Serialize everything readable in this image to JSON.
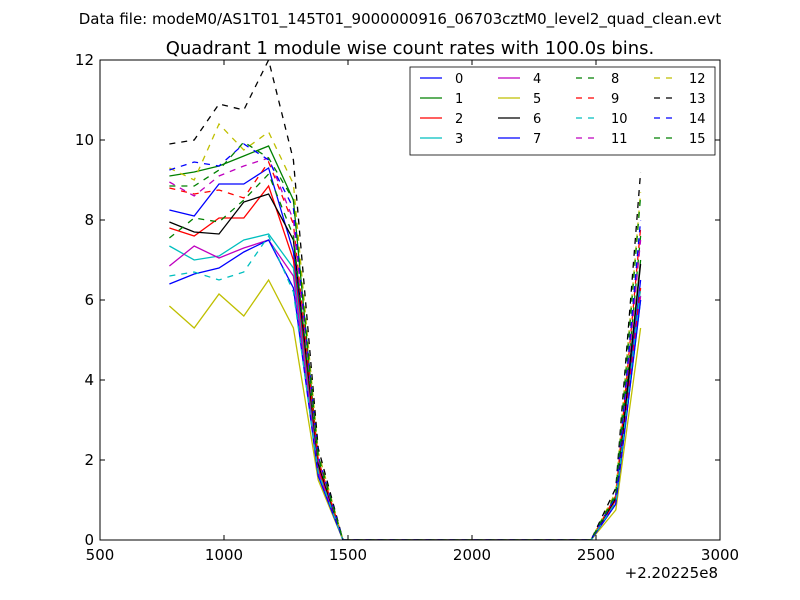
{
  "figure": {
    "suptitle": "Data file: modeM0/AS1T01_145T01_9000000916_06703cztM0_level2_quad_clean.evt"
  },
  "chart_data": {
    "type": "line",
    "title": "Quadrant 1 module wise count rates with 100.0s bins.",
    "xlabel": "",
    "ylabel": "",
    "offset_label": "+2.20225e8",
    "xlim": [
      500,
      3000
    ],
    "ylim": [
      0,
      12
    ],
    "xticks": [
      "500",
      "1000",
      "1500",
      "2000",
      "2500",
      "3000"
    ],
    "yticks": [
      "0",
      "2",
      "4",
      "6",
      "8",
      "10",
      "12"
    ],
    "grid": false,
    "legend_position": "top-right",
    "legend_columns": 4,
    "x": [
      780,
      880,
      980,
      1080,
      1180,
      1280,
      1380,
      1480,
      1580,
      1680,
      1780,
      1880,
      1980,
      2080,
      2180,
      2280,
      2380,
      2480,
      2580,
      2680
    ],
    "series": [
      {
        "name": "0",
        "color": "#0000ff",
        "dash": "solid",
        "values": [
          8.25,
          8.1,
          8.9,
          8.9,
          9.3,
          7.2,
          1.8,
          0,
          0,
          0,
          0,
          0,
          0,
          0,
          0,
          0,
          0,
          0,
          1.0,
          6.5
        ]
      },
      {
        "name": "1",
        "color": "#008000",
        "dash": "solid",
        "values": [
          9.1,
          9.2,
          9.35,
          9.6,
          9.85,
          8.5,
          2.0,
          0,
          0,
          0,
          0,
          0,
          0,
          0,
          0,
          0,
          0,
          0,
          1.1,
          7.0
        ]
      },
      {
        "name": "2",
        "color": "#ff0000",
        "dash": "solid",
        "values": [
          7.8,
          7.6,
          8.05,
          8.05,
          8.85,
          7.0,
          1.8,
          0,
          0,
          0,
          0,
          0,
          0,
          0,
          0,
          0,
          0,
          0,
          1.0,
          6.3
        ]
      },
      {
        "name": "3",
        "color": "#00bfbf",
        "dash": "solid",
        "values": [
          7.35,
          7.0,
          7.1,
          7.5,
          7.65,
          6.8,
          1.7,
          0,
          0,
          0,
          0,
          0,
          0,
          0,
          0,
          0,
          0,
          0,
          0.9,
          6.0
        ]
      },
      {
        "name": "4",
        "color": "#bf00bf",
        "dash": "solid",
        "values": [
          6.85,
          7.35,
          7.05,
          7.3,
          7.5,
          6.6,
          1.7,
          0,
          0,
          0,
          0,
          0,
          0,
          0,
          0,
          0,
          0,
          0,
          0.9,
          6.1
        ]
      },
      {
        "name": "5",
        "color": "#bfbf00",
        "dash": "solid",
        "values": [
          5.85,
          5.3,
          6.15,
          5.6,
          6.5,
          5.3,
          1.5,
          0,
          0,
          0,
          0,
          0,
          0,
          0,
          0,
          0,
          0,
          0,
          0.75,
          5.3
        ]
      },
      {
        "name": "6",
        "color": "#000000",
        "dash": "solid",
        "values": [
          7.95,
          7.7,
          7.65,
          8.45,
          8.65,
          7.5,
          1.9,
          0,
          0,
          0,
          0,
          0,
          0,
          0,
          0,
          0,
          0,
          0,
          1.05,
          6.9
        ]
      },
      {
        "name": "7",
        "color": "#0000ff",
        "dash": "solid",
        "values": [
          6.4,
          6.65,
          6.8,
          7.2,
          7.5,
          6.3,
          1.6,
          0,
          0,
          0,
          0,
          0,
          0,
          0,
          0,
          0,
          0,
          0,
          0.9,
          6.0
        ]
      },
      {
        "name": "8",
        "color": "#008000",
        "dash": "dashed",
        "values": [
          7.55,
          8.05,
          7.95,
          8.5,
          9.15,
          7.6,
          2.0,
          0,
          0,
          0,
          0,
          0,
          0,
          0,
          0,
          0,
          0,
          0,
          1.1,
          7.6
        ]
      },
      {
        "name": "9",
        "color": "#ff0000",
        "dash": "dashed",
        "values": [
          8.8,
          8.65,
          8.75,
          8.55,
          9.45,
          7.9,
          2.0,
          0,
          0,
          0,
          0,
          0,
          0,
          0,
          0,
          0,
          0,
          0,
          1.1,
          7.8
        ]
      },
      {
        "name": "10",
        "color": "#00bfbf",
        "dash": "dashed",
        "values": [
          6.6,
          6.7,
          6.5,
          6.7,
          7.6,
          6.2,
          1.7,
          0,
          0,
          0,
          0,
          0,
          0,
          0,
          0,
          0,
          0,
          0,
          0.95,
          6.3
        ]
      },
      {
        "name": "11",
        "color": "#bf00bf",
        "dash": "dashed",
        "values": [
          8.95,
          8.6,
          9.1,
          9.35,
          9.55,
          8.0,
          2.0,
          0,
          0,
          0,
          0,
          0,
          0,
          0,
          0,
          0,
          0,
          0,
          1.1,
          7.5
        ]
      },
      {
        "name": "12",
        "color": "#bfbf00",
        "dash": "dashed",
        "values": [
          9.3,
          9.0,
          10.4,
          9.75,
          10.2,
          8.9,
          2.2,
          0,
          0,
          0,
          0,
          0,
          0,
          0,
          0,
          0,
          0,
          0,
          1.2,
          8.7
        ]
      },
      {
        "name": "13",
        "color": "#000000",
        "dash": "dashed",
        "values": [
          9.9,
          10.0,
          10.9,
          10.75,
          12.0,
          9.5,
          2.3,
          0,
          0,
          0,
          0,
          0,
          0,
          0,
          0,
          0,
          0,
          0,
          1.3,
          9.2
        ]
      },
      {
        "name": "14",
        "color": "#0000ff",
        "dash": "dashed",
        "values": [
          9.25,
          9.45,
          9.35,
          9.9,
          9.5,
          8.3,
          2.1,
          0,
          0,
          0,
          0,
          0,
          0,
          0,
          0,
          0,
          0,
          0,
          1.1,
          8.0
        ]
      },
      {
        "name": "15",
        "color": "#008000",
        "dash": "dashed",
        "values": [
          8.85,
          8.85,
          9.25,
          9.95,
          9.55,
          8.5,
          2.1,
          0,
          0,
          0,
          0,
          0,
          0,
          0,
          0,
          0,
          0,
          0,
          1.15,
          8.6
        ]
      }
    ]
  }
}
